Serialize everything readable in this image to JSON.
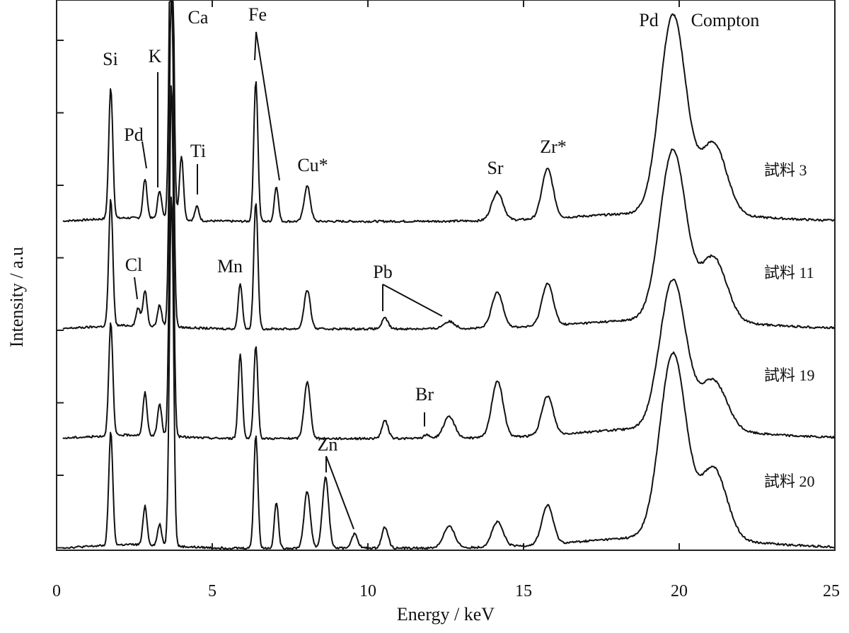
{
  "chart_data": {
    "type": "line",
    "xlabel": "Energy / keV",
    "ylabel": "Intensity / a.u",
    "xlim": [
      0,
      25
    ],
    "x_ticks": [
      "0",
      "5",
      "10",
      "15",
      "20",
      "25"
    ],
    "y_ticks_labeled": false,
    "grid": false,
    "series": [
      {
        "name": "試料 3",
        "offset": 3,
        "peaks": [
          {
            "element": "Si",
            "energy": 1.74,
            "height": 1.85
          },
          {
            "element": "Pd",
            "energy": 2.84,
            "height": 0.55
          },
          {
            "element": "K",
            "energy": 3.31,
            "height": 0.4
          },
          {
            "element": "Ca",
            "energy": 3.69,
            "height": 5.5
          },
          {
            "element": "Ca Kβ",
            "energy": 4.01,
            "height": 0.9
          },
          {
            "element": "Ti",
            "energy": 4.51,
            "height": 0.2
          },
          {
            "element": "Fe",
            "energy": 6.4,
            "height": 2.0
          },
          {
            "element": "Fe Kβ",
            "energy": 7.06,
            "height": 0.5
          },
          {
            "element": "Cu*",
            "energy": 8.05,
            "height": 0.5
          },
          {
            "element": "Sr",
            "energy": 14.16,
            "height": 0.4
          },
          {
            "element": "Zr*",
            "energy": 15.77,
            "height": 0.7
          },
          {
            "element": "Pd",
            "energy": 19.8,
            "height": 2.8
          },
          {
            "element": "Compton",
            "energy": 21.1,
            "height": 1.0
          }
        ]
      },
      {
        "name": "試料 11",
        "offset": 2,
        "peaks": [
          {
            "element": "Si",
            "energy": 1.74,
            "height": 1.8
          },
          {
            "element": "Cl",
            "energy": 2.62,
            "height": 0.25
          },
          {
            "element": "Pd",
            "energy": 2.84,
            "height": 0.5
          },
          {
            "element": "K",
            "energy": 3.31,
            "height": 0.3
          },
          {
            "element": "Ca",
            "energy": 3.69,
            "height": 5.0
          },
          {
            "element": "Mn",
            "energy": 5.9,
            "height": 0.65
          },
          {
            "element": "Fe",
            "energy": 6.4,
            "height": 1.8
          },
          {
            "element": "Cu*",
            "energy": 8.05,
            "height": 0.55
          },
          {
            "element": "Pb Lα",
            "energy": 10.55,
            "height": 0.15
          },
          {
            "element": "Pb Lβ",
            "energy": 12.61,
            "height": 0.1
          },
          {
            "element": "Sr",
            "energy": 14.16,
            "height": 0.5
          },
          {
            "element": "Zr*",
            "energy": 15.77,
            "height": 0.6
          },
          {
            "element": "Pd",
            "energy": 19.8,
            "height": 2.4
          },
          {
            "element": "Compton",
            "energy": 21.1,
            "height": 0.9
          }
        ]
      },
      {
        "name": "試料 19",
        "offset": 1,
        "peaks": [
          {
            "element": "Si",
            "energy": 1.74,
            "height": 1.6
          },
          {
            "element": "Pd",
            "energy": 2.84,
            "height": 0.6
          },
          {
            "element": "K",
            "energy": 3.31,
            "height": 0.45
          },
          {
            "element": "Ca",
            "energy": 3.69,
            "height": 5.0
          },
          {
            "element": "Mn",
            "energy": 5.9,
            "height": 1.2
          },
          {
            "element": "Fe",
            "energy": 6.4,
            "height": 1.3
          },
          {
            "element": "Cu*",
            "energy": 8.05,
            "height": 0.8
          },
          {
            "element": "Pb Lα",
            "energy": 10.55,
            "height": 0.25
          },
          {
            "element": "Br",
            "energy": 11.9,
            "height": 0.05
          },
          {
            "element": "Pb Lβ",
            "energy": 12.61,
            "height": 0.3
          },
          {
            "element": "Sr",
            "energy": 14.16,
            "height": 0.8
          },
          {
            "element": "Zr*",
            "energy": 15.77,
            "height": 0.55
          },
          {
            "element": "Pd",
            "energy": 19.8,
            "height": 2.1
          },
          {
            "element": "Compton",
            "energy": 21.1,
            "height": 0.7
          }
        ]
      },
      {
        "name": "試料 20",
        "offset": 0,
        "peaks": [
          {
            "element": "Si",
            "energy": 1.74,
            "height": 1.6
          },
          {
            "element": "Pd",
            "energy": 2.84,
            "height": 0.55
          },
          {
            "element": "K",
            "energy": 3.31,
            "height": 0.3
          },
          {
            "element": "Ca",
            "energy": 3.69,
            "height": 5.0
          },
          {
            "element": "Fe",
            "energy": 6.4,
            "height": 1.6
          },
          {
            "element": "Fe Kβ",
            "energy": 7.06,
            "height": 0.65
          },
          {
            "element": "Cu*",
            "energy": 8.05,
            "height": 0.8
          },
          {
            "element": "Zn",
            "energy": 8.64,
            "height": 1.0
          },
          {
            "element": "Zn Kβ",
            "energy": 9.57,
            "height": 0.2
          },
          {
            "element": "Pb Lα",
            "energy": 10.55,
            "height": 0.3
          },
          {
            "element": "Pb Lβ",
            "energy": 12.61,
            "height": 0.3
          },
          {
            "element": "Sr",
            "energy": 14.16,
            "height": 0.35
          },
          {
            "element": "Zr*",
            "energy": 15.77,
            "height": 0.55
          },
          {
            "element": "Pd",
            "energy": 19.8,
            "height": 2.6
          },
          {
            "element": "Compton",
            "energy": 21.1,
            "height": 1.0
          }
        ]
      }
    ],
    "annotations": [
      {
        "text": "Si",
        "energy": 1.74,
        "series": "試料 3"
      },
      {
        "text": "Pd",
        "energy": 2.84,
        "series": "試料 3"
      },
      {
        "text": "K",
        "energy": 3.31,
        "series": "試料 3"
      },
      {
        "text": "Ca",
        "energy": 3.69,
        "series": "試料 3"
      },
      {
        "text": "Ti",
        "energy": 4.51,
        "series": "試料 3"
      },
      {
        "text": "Fe",
        "energy": 6.4,
        "series": "試料 3"
      },
      {
        "text": "Cu*",
        "energy": 8.05,
        "series": "試料 3"
      },
      {
        "text": "Sr",
        "energy": 14.16,
        "series": "試料 3"
      },
      {
        "text": "Zr*",
        "energy": 15.77,
        "series": "試料 3"
      },
      {
        "text": "Pd",
        "energy": 19.8,
        "series": "試料 3"
      },
      {
        "text": "Compton",
        "energy": 21.1,
        "series": "試料 3"
      },
      {
        "text": "Cl",
        "energy": 2.62,
        "series": "試料 11"
      },
      {
        "text": "Mn",
        "energy": 5.9,
        "series": "試料 11"
      },
      {
        "text": "Pb",
        "energy": 10.55,
        "series": "試料 11"
      },
      {
        "text": "Br",
        "energy": 11.9,
        "series": "試料 19"
      },
      {
        "text": "Zn",
        "energy": 8.64,
        "series": "試料 20"
      }
    ]
  }
}
